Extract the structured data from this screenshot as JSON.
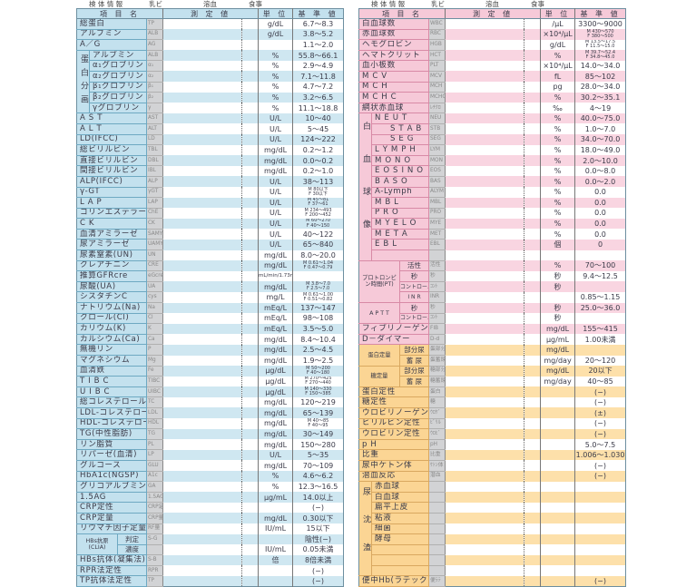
{
  "meta": {
    "specimen_info": "検 体 情 報",
    "chyle": "乳ビ",
    "hemolysis": "溶血",
    "meal": "食事"
  },
  "headers": {
    "item": "項 目 名",
    "value": "測 定 値",
    "unit": "単 位",
    "ref": "基 準 値"
  },
  "colors": {
    "blue": "#c3e1ee",
    "pink": "#f6c9d8",
    "orange": "#fbd594",
    "code": "#d2d3d5"
  },
  "left": {
    "theme": "blue",
    "rows": [
      {
        "name": "総蛋白",
        "code": "TP",
        "unit": "g/dL",
        "ref": "6.7～8.3"
      },
      {
        "name": "アルブミン",
        "code": "ALB",
        "unit": "g/dL",
        "ref": "3.8～5.2"
      },
      {
        "name": "A／G",
        "code": "AG",
        "unit": "",
        "ref": "1.1～2.0"
      },
      {
        "group": "蛋白分画",
        "kind": "vertical",
        "items": [
          {
            "name": "アルブミン",
            "code": "ALB",
            "unit": "%",
            "ref": "55.8～66.1"
          },
          {
            "name": "α₁グロブリン",
            "code": "α₁",
            "unit": "%",
            "ref": "2.9～4.9"
          },
          {
            "name": "α₂グロブリン",
            "code": "α₂",
            "unit": "%",
            "ref": "7.1～11.8"
          },
          {
            "name": "β₁グロブリン",
            "code": "β₁",
            "unit": "%",
            "ref": "4.7～7.2"
          },
          {
            "name": "β₂グロブリン",
            "code": "β₂",
            "unit": "%",
            "ref": "3.2～6.5"
          },
          {
            "name": "γグロブリン",
            "code": "γ",
            "unit": "%",
            "ref": "11.1～18.8"
          }
        ]
      },
      {
        "name": "A S T",
        "code": "AST",
        "unit": "U/L",
        "ref": "10～40"
      },
      {
        "name": "A L T",
        "code": "ALT",
        "unit": "U/L",
        "ref": "5～45"
      },
      {
        "name": "LD(IFCC)",
        "code": "LD",
        "unit": "U/L",
        "ref": "124～222"
      },
      {
        "name": "総ビリルビン",
        "code": "TBL",
        "unit": "mg/dL",
        "ref": "0.2～1.2"
      },
      {
        "name": "直接ビリルビン",
        "code": "DBL",
        "unit": "mg/dL",
        "ref": "0.0～0.2"
      },
      {
        "name": "間接ビリルビン",
        "code": "IBL",
        "unit": "mg/dL",
        "ref": "0.2～1.0"
      },
      {
        "name": "ALP(IFCC)",
        "code": "ALP",
        "unit": "U/L",
        "ref": "38～113"
      },
      {
        "name": "γ-GT",
        "code": "γGT",
        "unit": "U/L",
        "ref_m": "M 80以下",
        "ref_f": "F 30以下"
      },
      {
        "name": "L A P",
        "code": "LAP",
        "unit": "U/L",
        "ref_m": "M 45～81",
        "ref_f": "F 37～61"
      },
      {
        "name": "コリンエステラーゼ",
        "code": "ChE",
        "unit": "U/L",
        "ref_m": "M 234～493",
        "ref_f": "F 200～452"
      },
      {
        "name": "C K",
        "code": "CK",
        "unit": "U/L",
        "ref_m": "M 60～270",
        "ref_f": "F 40～150"
      },
      {
        "name": "血清アミラーゼ",
        "code": "SAMY",
        "unit": "U/L",
        "ref": "40～122"
      },
      {
        "name": "尿アミラーゼ",
        "code": "UAMY",
        "unit": "U/L",
        "ref": "65～840"
      },
      {
        "name": "尿素窒素(UN)",
        "code": "UN",
        "unit": "mg/dL",
        "ref": "8.0～20.0"
      },
      {
        "name": "クレアチニン",
        "code": "CRE",
        "unit": "mg/dL",
        "ref_m": "M 0.61～1.04",
        "ref_f": "F 0.47～0.79"
      },
      {
        "name": "推算GFRcre",
        "code": "eGcre",
        "unit": "mL/min/1.73m²",
        "ref": ""
      },
      {
        "name": "尿酸(UA)",
        "code": "UA",
        "unit": "mg/dL",
        "ref_m": "M 3.8～7.0",
        "ref_f": "F 2.5～7.0"
      },
      {
        "name": "シスタチンC",
        "code": "cys",
        "unit": "mg/L",
        "ref_m": "M 0.61～1.00",
        "ref_f": "F 0.51～0.82"
      },
      {
        "name": "ナトリウム(Na)",
        "code": "Na",
        "unit": "mEq/L",
        "ref": "137～147"
      },
      {
        "name": "クロール(Cl)",
        "code": "Cl",
        "unit": "mEq/L",
        "ref": "98～108"
      },
      {
        "name": "カリウム(K)",
        "code": "K",
        "unit": "mEq/L",
        "ref": "3.5～5.0"
      },
      {
        "name": "カルシウム(Ca)",
        "code": "Ca",
        "unit": "mg/dL",
        "ref": "8.4～10.4"
      },
      {
        "name": "無機リン",
        "code": "P",
        "unit": "mg/dL",
        "ref": "2.5～4.5"
      },
      {
        "name": "マグネシウム",
        "code": "Mg",
        "unit": "mg/dL",
        "ref": "1.9～2.5"
      },
      {
        "name": "血清鉄",
        "code": "Fe",
        "unit": "μg/dL",
        "ref_m": "M 50～200",
        "ref_f": "F 40～180"
      },
      {
        "name": "T I B C",
        "code": "TIBC",
        "unit": "μg/dL",
        "ref_m": "M 270～425",
        "ref_f": "F 270～440"
      },
      {
        "name": "U I B C",
        "code": "UIBC",
        "unit": "μg/dL",
        "ref_m": "M 140～330",
        "ref_f": "F 150～385"
      },
      {
        "name": "総コレステロール",
        "code": "TC",
        "unit": "mg/dL",
        "ref": "120～219"
      },
      {
        "name": "LDL-コレステロール",
        "code": "LDL",
        "unit": "mg/dL",
        "ref": "65～139"
      },
      {
        "name": "HDL-コレステロール",
        "code": "HDL",
        "unit": "mg/dL",
        "ref_m": "M 40～85",
        "ref_f": "F 40～95"
      },
      {
        "name": "TG(中性脂肪)",
        "code": "TG",
        "unit": "mg/dL",
        "ref": "30～149"
      },
      {
        "name": "リン脂質",
        "code": "PL",
        "unit": "mg/dL",
        "ref": "150～280"
      },
      {
        "name": "リパーゼ(血清)",
        "code": "LP",
        "unit": "U/L",
        "ref": "5～35"
      },
      {
        "name": "グルコース",
        "code": "GLU",
        "unit": "mg/dL",
        "ref": "70～109"
      },
      {
        "name": "HbA1c(NGSP)",
        "code": "A1c",
        "unit": "%",
        "ref": "4.6～6.2"
      },
      {
        "name": "グリコアルブミン",
        "code": "GA",
        "unit": "%",
        "ref": "12.3～16.5"
      },
      {
        "name": "1.5AG",
        "code": "1.5AG",
        "unit": "μg/mL",
        "ref": "14.0以上"
      },
      {
        "name": "CRP定性",
        "code": "CRP定",
        "unit": "",
        "ref": "(−)"
      },
      {
        "name": "CRP定量",
        "code": "CRP量",
        "unit": "mg/dL",
        "ref": "0.30以下"
      },
      {
        "name": "リウマチ因子定量",
        "code": "RF量",
        "unit": "IU/mL",
        "ref": "15以下"
      },
      {
        "group": "HBs抗原 (CLIA)",
        "kind": "wide",
        "items": [
          {
            "sub": "判定",
            "code": "S-G",
            "unit": "",
            "ref": "陰性(−)"
          },
          {
            "sub": "濃度",
            "code": "",
            "unit": "IU/mL",
            "ref": "0.05未満"
          }
        ]
      },
      {
        "name": "HBs抗体(凝集法)",
        "code": "S-B",
        "unit": "倍",
        "ref": "8倍未満"
      },
      {
        "name": "RPR法定性",
        "code": "RPR",
        "unit": "",
        "ref": "(−)"
      },
      {
        "name": "TP抗体法定性",
        "code": "TP",
        "unit": "",
        "ref": "(−)"
      }
    ]
  },
  "right": {
    "theme": "pink",
    "rows": [
      {
        "name": "白血球数",
        "code": "WBC",
        "unit": "/μL",
        "ref": "3300～9000"
      },
      {
        "name": "赤血球数",
        "code": "RBC",
        "unit": "×10⁴/μL",
        "ref_m": "M 430～570",
        "ref_f": "F 380～500"
      },
      {
        "name": "ヘモグロビン",
        "code": "HGB",
        "unit": "g/dL",
        "ref_m": "M 13.5～17.5",
        "ref_f": "F 11.5～15.0"
      },
      {
        "name": "ヘマトクリット",
        "code": "HCT",
        "unit": "%",
        "ref_m": "M 39.7～52.4",
        "ref_f": "F 34.8～45.0"
      },
      {
        "name": "血小板数",
        "code": "PLT",
        "unit": "×10⁴/μL",
        "ref": "14.0～34.0"
      },
      {
        "name": "M C V",
        "code": "MCV",
        "unit": "fL",
        "ref": "85～102"
      },
      {
        "name": "M C H",
        "code": "MCH",
        "unit": "pg",
        "ref": "28.0～34.0"
      },
      {
        "name": "M C H C",
        "code": "MCHC",
        "unit": "%",
        "ref": "30.2～35.1"
      },
      {
        "name": "網状赤血球",
        "code": "ﾚﾁｸﾛ",
        "unit": "‰",
        "ref": "4～19"
      },
      {
        "group": "白血球像",
        "kind": "vertical",
        "items": [
          {
            "name": "N E U T",
            "code": "NEU",
            "unit": "%",
            "ref": "40.0～75.0"
          },
          {
            "name": "S T A B",
            "code": "STB",
            "unit": "%",
            "ref": "1.0～7.0",
            "indent": true
          },
          {
            "name": "S E G",
            "code": "SEG",
            "unit": "%",
            "ref": "34.0～70.0",
            "indent": true
          },
          {
            "name": "L Y M P H",
            "code": "LYM",
            "unit": "%",
            "ref": "18.0～49.0"
          },
          {
            "name": "M O N O",
            "code": "MON",
            "unit": "%",
            "ref": "2.0～10.0"
          },
          {
            "name": "E O S I N O",
            "code": "EOS",
            "unit": "%",
            "ref": "0.0～8.0"
          },
          {
            "name": "B A S O",
            "code": "BAS",
            "unit": "%",
            "ref": "0.0～2.0"
          },
          {
            "name": "A-Lymph",
            "code": "ALYM",
            "unit": "%",
            "ref": "0.0"
          },
          {
            "name": "M B L",
            "code": "MBL",
            "unit": "%",
            "ref": "0.0"
          },
          {
            "name": "P R O",
            "code": "PRO",
            "unit": "%",
            "ref": "0.0"
          },
          {
            "name": "M Y E L O",
            "code": "MYE",
            "unit": "%",
            "ref": "0.0"
          },
          {
            "name": "M E T A",
            "code": "MET",
            "unit": "%",
            "ref": "0.0"
          },
          {
            "name": "E B L",
            "code": "EBL",
            "unit": "個",
            "ref": "0"
          },
          {
            "name": "",
            "code": "",
            "unit": "",
            "ref": ""
          }
        ]
      },
      {
        "group": "プロトロンビン時間(PT)",
        "kind": "wide",
        "items": [
          {
            "sub": "活性",
            "code": "活性",
            "unit": "%",
            "ref": "70～100"
          },
          {
            "sub": "秒",
            "code": "秒",
            "unit": "秒",
            "ref": "9.4～12.5"
          },
          {
            "sub": "コントロール",
            "code": "ｺﾝﾄ",
            "unit": "秒",
            "ref": ""
          },
          {
            "sub": "I N R",
            "code": "INR",
            "unit": "",
            "ref": "0.85～1.15"
          }
        ]
      },
      {
        "group": "A P T T",
        "kind": "wide",
        "items": [
          {
            "sub": "秒",
            "code": "秒",
            "unit": "秒",
            "ref": "25.0～36.0"
          },
          {
            "sub": "コントロール",
            "code": "ｺﾝﾄ",
            "unit": "秒",
            "ref": ""
          }
        ]
      },
      {
        "name": "フィブリノーゲン",
        "code": "FIB",
        "unit": "mg/dL",
        "ref": "155～415"
      },
      {
        "name": "D－ダイマー",
        "code": "D-d",
        "unit": "μg/mL",
        "ref": "1.00未満"
      },
      {
        "group": "蛋白定量",
        "kind": "wide",
        "urine": true,
        "items": [
          {
            "sub": "部分尿",
            "code": "蛋部分",
            "unit": "mg/dL",
            "ref": ""
          },
          {
            "sub": "蓄 尿",
            "code": "蛋蓄尿",
            "unit": "mg/day",
            "ref": "20～120"
          }
        ]
      },
      {
        "group": "糖定量",
        "kind": "wide",
        "urine": true,
        "items": [
          {
            "sub": "部分尿",
            "code": "糖部分",
            "unit": "mg/dL",
            "ref": "20以下"
          },
          {
            "sub": "蓄 尿",
            "code": "糖蓄尿",
            "unit": "mg/day",
            "ref": "40～85"
          }
        ]
      },
      {
        "name": "蛋白定性",
        "code": "蛋白",
        "unit": "",
        "ref": "(−)",
        "urine": true
      },
      {
        "name": "糖定性",
        "code": "糖",
        "unit": "",
        "ref": "(−)",
        "urine": true
      },
      {
        "name": "ウロビリノーゲン定性",
        "code": "ｳﾛｹﾞ",
        "unit": "",
        "ref": "(±)",
        "urine": true
      },
      {
        "name": "ビリルビン定性",
        "code": "ﾋﾞﾘﾙ",
        "unit": "",
        "ref": "(−)",
        "urine": true
      },
      {
        "name": "ウロビリン定性",
        "code": "ｳﾛﾋﾞ",
        "unit": "",
        "ref": "(−)",
        "urine": true
      },
      {
        "name": "p H",
        "code": "pH",
        "unit": "",
        "ref": "5.0～7.5",
        "urine": true
      },
      {
        "name": "比重",
        "code": "比重",
        "unit": "",
        "ref": "1.006～1.030",
        "urine": true
      },
      {
        "name": "尿中ケトン体",
        "code": "ｹﾄﾝ体",
        "unit": "",
        "ref": "(−)",
        "urine": true
      },
      {
        "name": "潜血反応",
        "code": "潜血",
        "unit": "",
        "ref": "(−)",
        "urine": true
      },
      {
        "group": "尿沈渣",
        "kind": "vertical",
        "urine": true,
        "items": [
          {
            "name": "赤血球",
            "code": "",
            "unit": "",
            "ref": ""
          },
          {
            "name": "白血球",
            "code": "",
            "unit": "",
            "ref": ""
          },
          {
            "name": "扁平上皮",
            "code": "",
            "unit": "",
            "ref": ""
          },
          {
            "name": "粘液",
            "code": "",
            "unit": "",
            "ref": ""
          },
          {
            "name": "細菌",
            "code": "",
            "unit": "",
            "ref": ""
          },
          {
            "name": "酵母",
            "code": "",
            "unit": "",
            "ref": ""
          },
          {
            "name": "",
            "code": "",
            "unit": "",
            "ref": ""
          },
          {
            "name": "",
            "code": "",
            "unit": "",
            "ref": ""
          },
          {
            "name": "",
            "code": "",
            "unit": "",
            "ref": ""
          }
        ]
      },
      {
        "name": "便中Hb(ラテックス)",
        "code": "便ﾗﾃ",
        "unit": "",
        "ref": "(−)",
        "urine": true
      }
    ]
  }
}
